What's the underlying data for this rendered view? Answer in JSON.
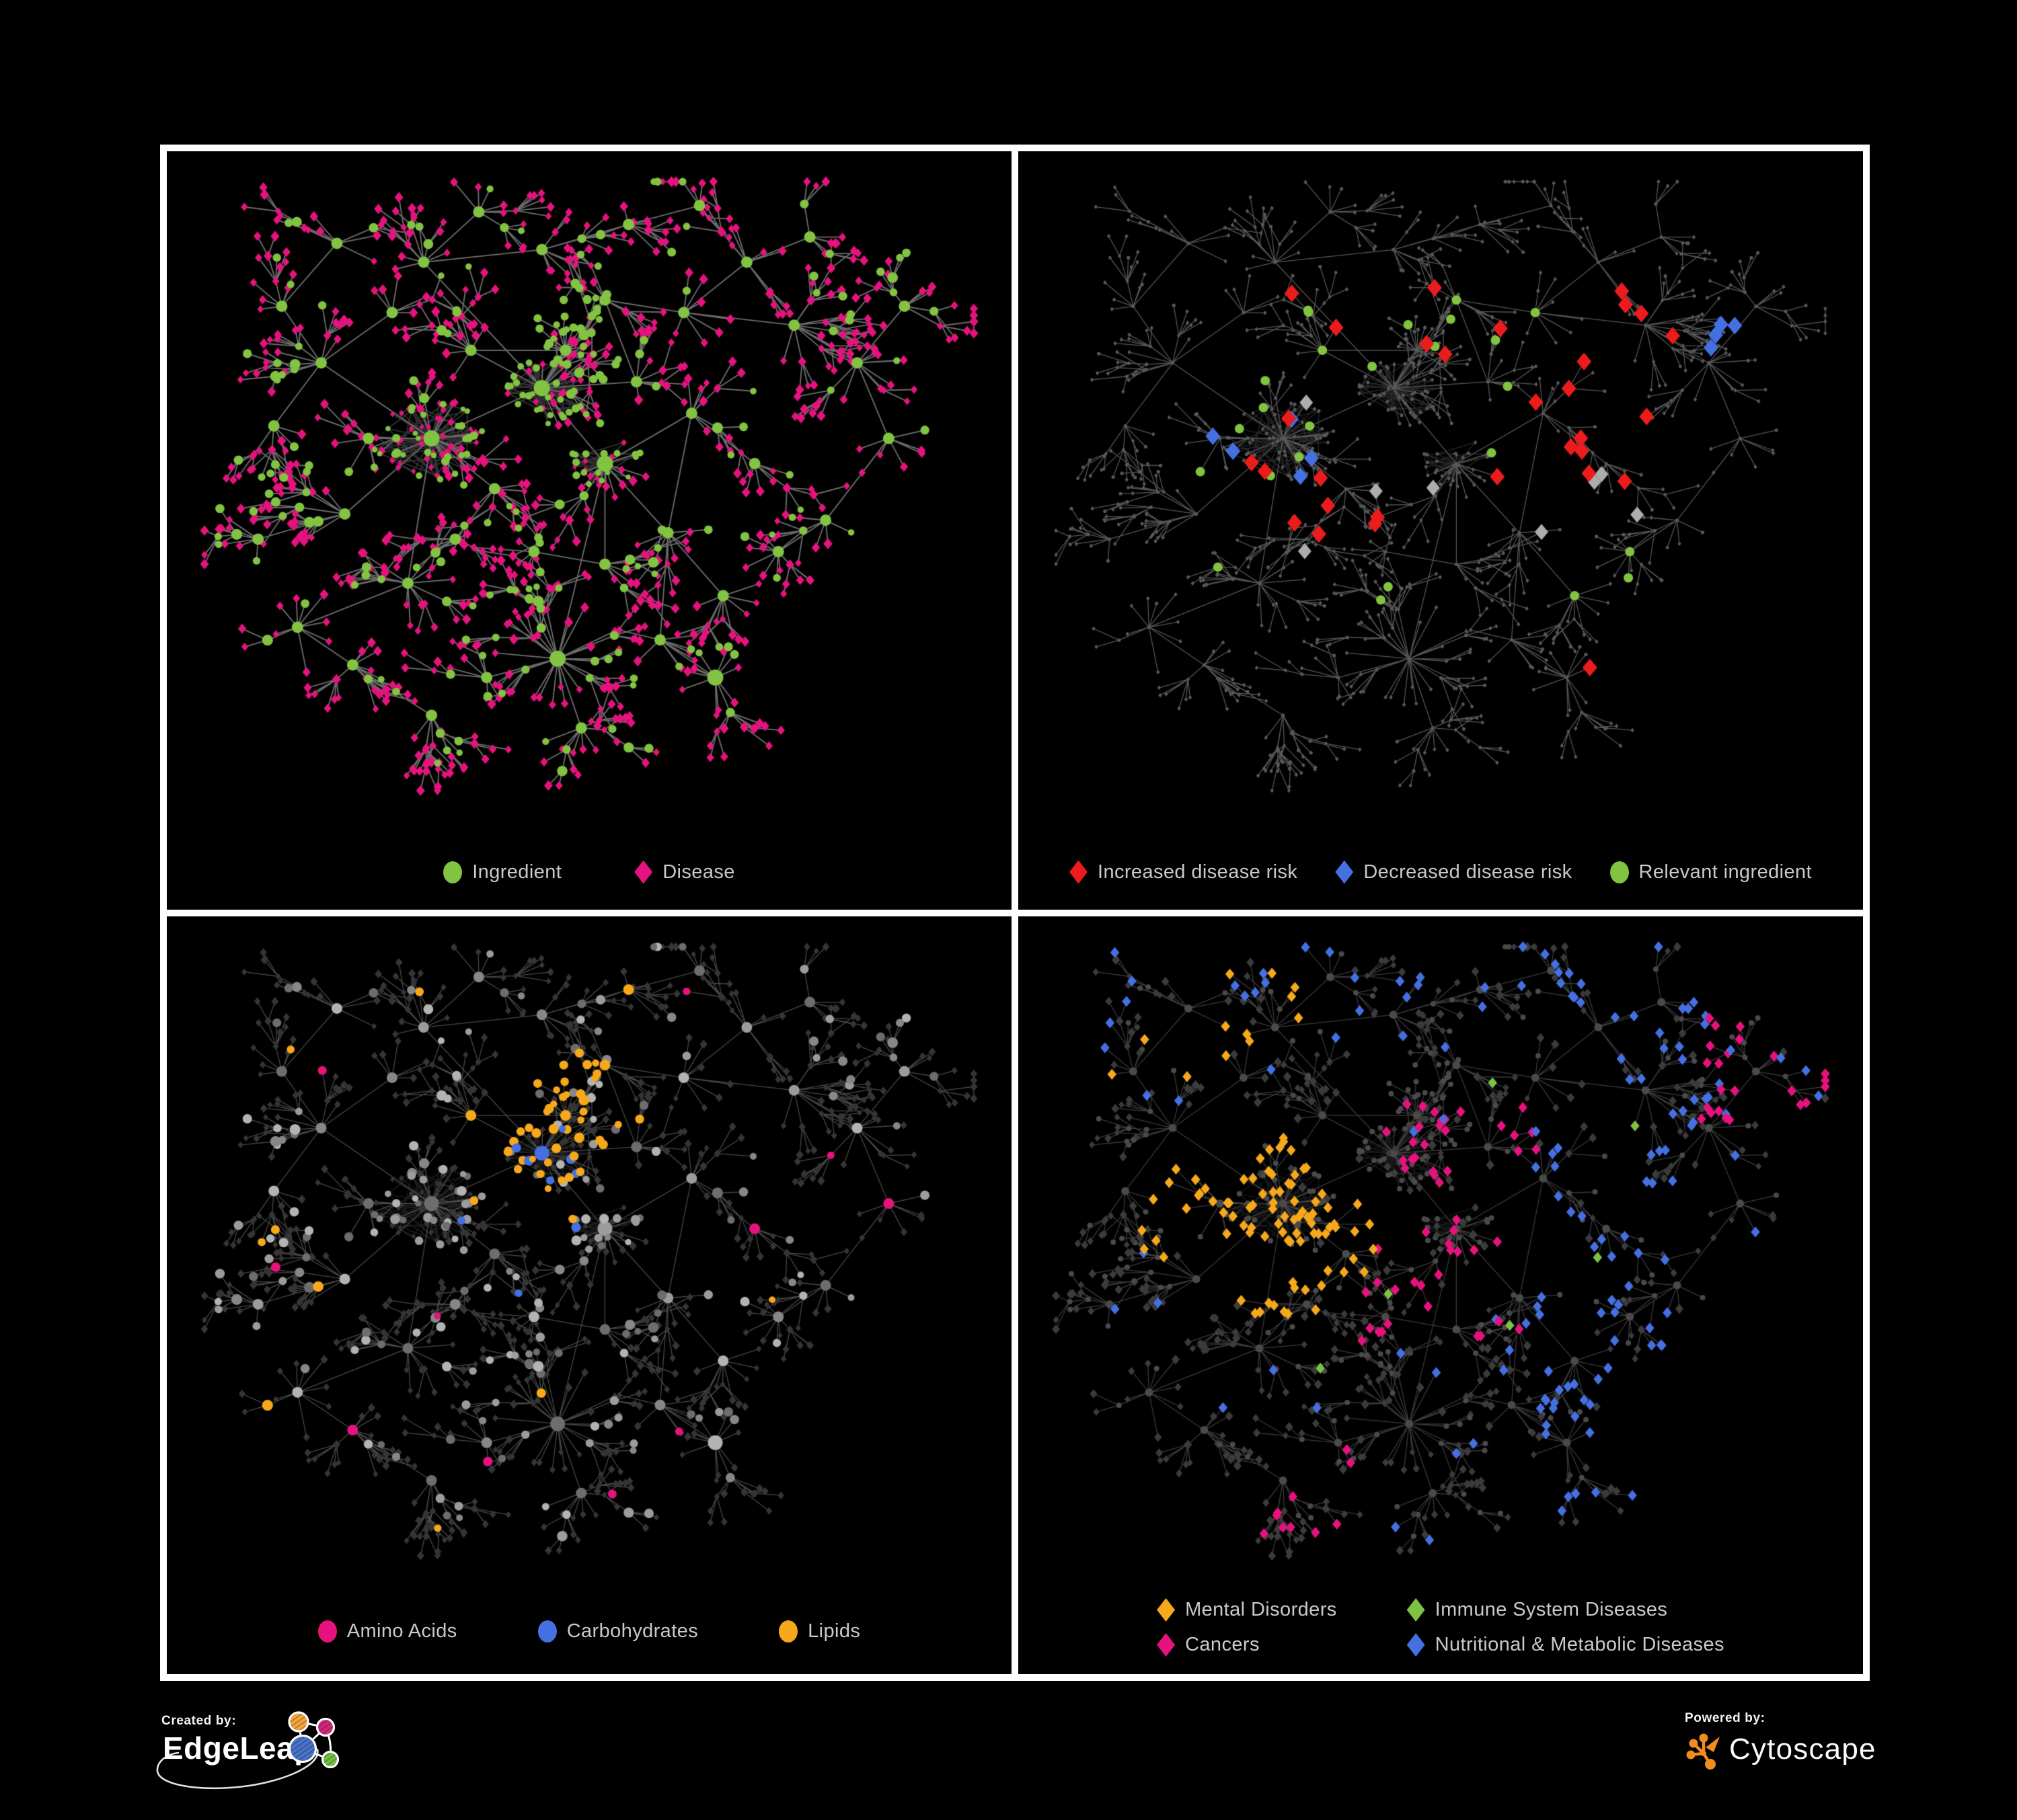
{
  "figure": {
    "background": "#000000",
    "frame_color": "#FFFFFF",
    "panels": [
      {
        "name": "ingredient-disease-network",
        "legend": [
          {
            "label": "Ingredient",
            "shape": "circle",
            "color": "#82C341"
          },
          {
            "label": "Disease",
            "shape": "diamond",
            "color": "#E6127E"
          }
        ]
      },
      {
        "name": "disease-risk-network",
        "legend": [
          {
            "label": "Increased disease risk",
            "shape": "diamond",
            "color": "#EC1C1C"
          },
          {
            "label": "Decreased disease risk",
            "shape": "diamond",
            "color": "#4470E2"
          },
          {
            "label": "Relevant ingredient",
            "shape": "circle",
            "color": "#82C341"
          }
        ]
      },
      {
        "name": "ingredient-class-network",
        "legend": [
          {
            "label": "Amino Acids",
            "shape": "circle",
            "color": "#E6127E"
          },
          {
            "label": "Carbohydrates",
            "shape": "circle",
            "color": "#4470E2"
          },
          {
            "label": "Lipids",
            "shape": "circle",
            "color": "#F7A81B"
          }
        ]
      },
      {
        "name": "disease-class-network",
        "legend": [
          {
            "label": "Mental Disorders",
            "shape": "diamond",
            "color": "#F7A81B"
          },
          {
            "label": "Immune System Diseases",
            "shape": "diamond",
            "color": "#7DC242"
          },
          {
            "label": "Cancers",
            "shape": "diamond",
            "color": "#E6127E"
          },
          {
            "label": "Nutritional & Metabolic Diseases",
            "shape": "diamond",
            "color": "#4470E2"
          }
        ]
      }
    ],
    "network_style": {
      "edge_color": "#6F6F6F",
      "muted_disease_color": "#3B3B3B",
      "muted_tiny_color": "#585858",
      "neutral_ingredient_color": "#9A9A9A",
      "highlight_gray": "#ADADAD",
      "muted_ingredient_dark": "#4A4A4A"
    }
  },
  "footer": {
    "created_by_label": "Created by:",
    "created_by_brand": "EdgeLeap",
    "powered_by_label": "Powered by:",
    "powered_by_brand": "Cytoscape",
    "edgeleap_logo_colors": {
      "orange": "#F2A33A",
      "magenta": "#CE2A78",
      "blue": "#4A72C8",
      "green": "#72BF44"
    },
    "cytoscape_logo_color": "#F28C1E"
  }
}
